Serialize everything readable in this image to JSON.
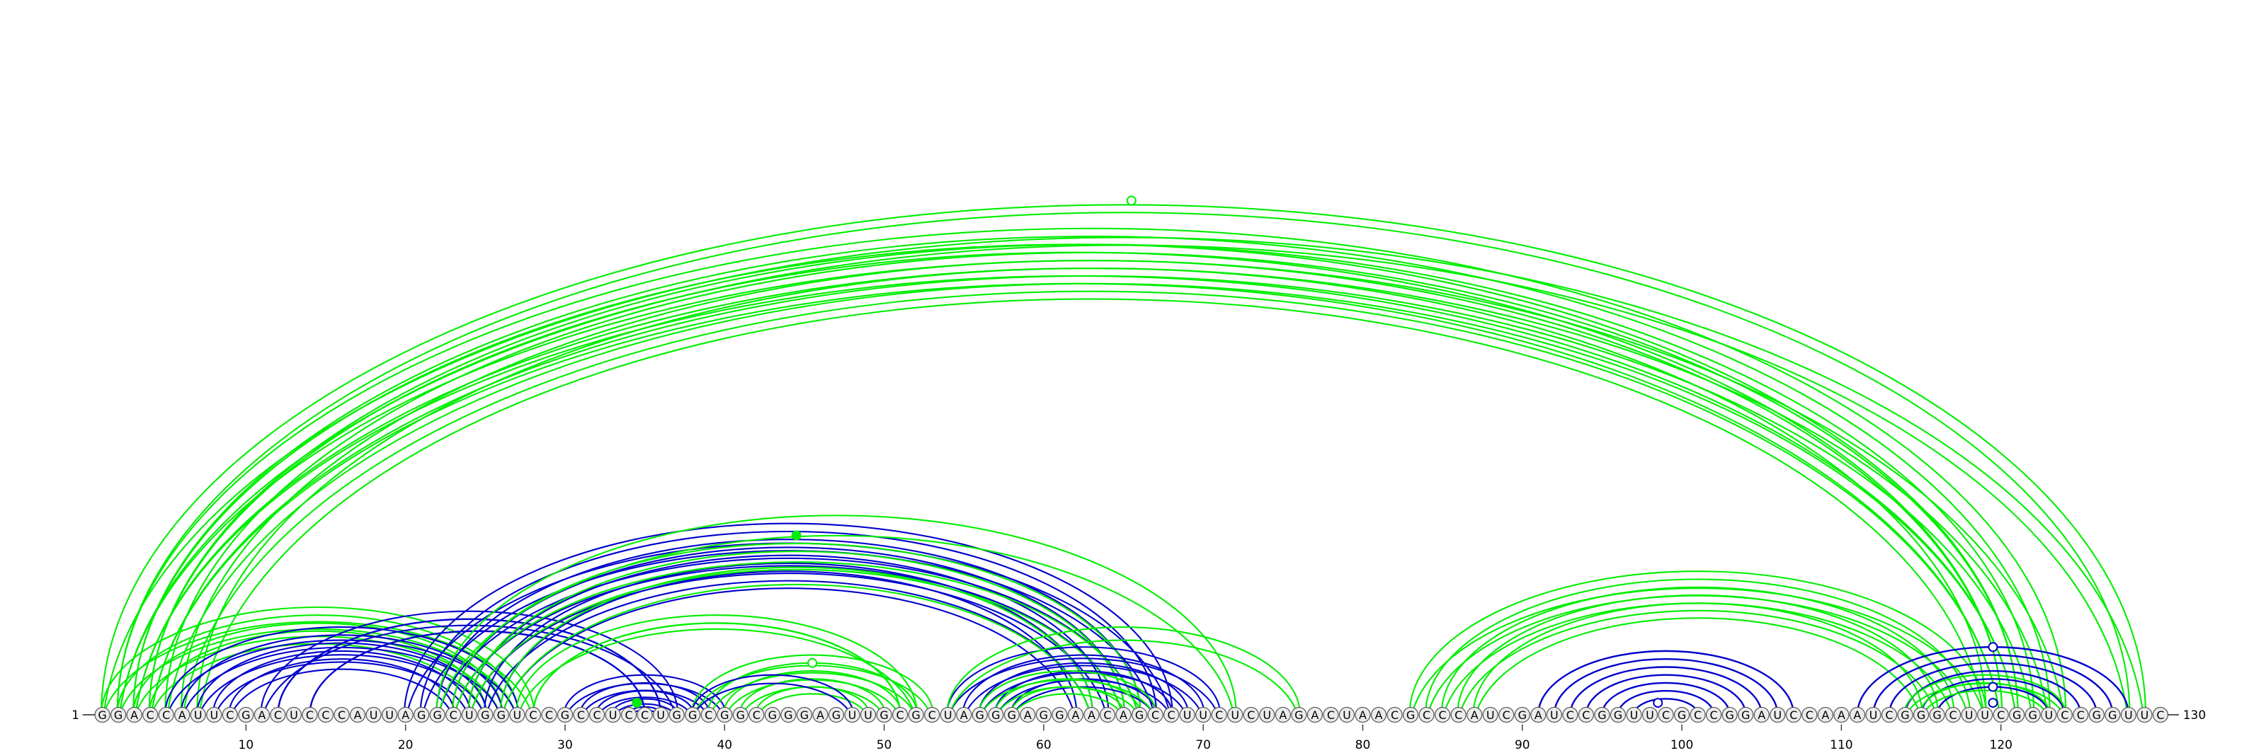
{
  "sequence": "GGACCAUUCGACUCCCAUUAGGCUGGUCCGCCUCCUGGCGGCGGGAGUUGCGCUAGGGAGGAACAGCCUUCUCUAGACUAACGCCCAUCGAUCCGGUUCGCCGGAUCCAAAUCGGGCUUCGGUCCGGUUC",
  "start_label": "1",
  "end_label": "130",
  "ticks": [
    "10",
    "20",
    "30",
    "40",
    "50",
    "60",
    "70",
    "80",
    "90",
    "100",
    "110",
    "120"
  ],
  "colors": {
    "green": "#00ee00",
    "blue": "#0000cc",
    "nucleotide_fill": "#ececec",
    "nucleotide_stroke": "#555555"
  },
  "helices": [
    {
      "color": "green",
      "i": 1,
      "j": 129,
      "count": 2,
      "double": true
    },
    {
      "color": "green",
      "i": 2,
      "j": 124,
      "count": 6,
      "double": true
    },
    {
      "color": "green",
      "i": 3,
      "j": 121,
      "count": 2,
      "double": true
    },
    {
      "color": "green",
      "i": 1,
      "j": 28,
      "count": 4,
      "double": true
    },
    {
      "color": "blue",
      "i": 5,
      "j": 27,
      "count": 5,
      "double": true
    },
    {
      "color": "blue",
      "i": 11,
      "j": 37,
      "count": 1,
      "double": true
    },
    {
      "color": "blue",
      "i": 12,
      "j": 36,
      "count": 1,
      "double": false
    },
    {
      "color": "blue",
      "i": 14,
      "j": 35,
      "count": 1,
      "double": false
    },
    {
      "color": "blue",
      "i": 20,
      "j": 68,
      "count": 7,
      "double": true
    },
    {
      "color": "green",
      "i": 22,
      "j": 72,
      "count": 1,
      "double": true
    },
    {
      "color": "green",
      "i": 23,
      "j": 66,
      "count": 2,
      "double": true
    },
    {
      "color": "green",
      "i": 26,
      "j": 63,
      "count": 1,
      "double": true
    },
    {
      "color": "green",
      "i": 27,
      "j": 52,
      "count": 1,
      "double": true
    },
    {
      "color": "green",
      "i": 28,
      "j": 51,
      "count": 1,
      "double": false
    },
    {
      "color": "blue",
      "i": 30,
      "j": 40,
      "count": 5,
      "double": true
    },
    {
      "color": "green",
      "i": 38,
      "j": 53,
      "count": 5,
      "double": true
    },
    {
      "color": "blue",
      "i": 38,
      "j": 48,
      "count": 1,
      "double": true
    },
    {
      "color": "blue",
      "i": 54,
      "j": 71,
      "count": 5,
      "double": true
    },
    {
      "color": "green",
      "i": 54,
      "j": 76,
      "count": 1,
      "double": true
    },
    {
      "color": "green",
      "i": 56,
      "j": 67,
      "count": 3,
      "double": true
    },
    {
      "color": "green",
      "i": 83,
      "j": 119,
      "count": 5,
      "double": true
    },
    {
      "color": "blue",
      "i": 91,
      "j": 107,
      "count": 7,
      "double": false
    },
    {
      "color": "blue",
      "i": 111,
      "j": 128,
      "count": 6,
      "double": false
    },
    {
      "color": "green",
      "i": 114,
      "j": 124,
      "count": 2,
      "double": true
    }
  ],
  "markers": [
    {
      "pos": 65.5,
      "color": "green",
      "apex_i": 1,
      "apex_j": 130,
      "filled": false
    },
    {
      "pos": 44.5,
      "color": "green",
      "apex_i": 22,
      "apex_j": 67,
      "filled": true
    },
    {
      "pos": 45.5,
      "color": "green",
      "apex_i": 39,
      "apex_j": 52,
      "filled": false
    },
    {
      "pos": 34.5,
      "color": "green",
      "apex_i": 33,
      "apex_j": 36,
      "filled": true
    },
    {
      "pos": 98.5,
      "color": "blue",
      "apex_i": 97,
      "apex_j": 100,
      "filled": false
    },
    {
      "pos": 119.5,
      "color": "blue",
      "apex_i": 111,
      "apex_j": 128,
      "filled": false
    },
    {
      "pos": 119.5,
      "color": "blue",
      "apex_i": 116,
      "apex_j": 123,
      "filled": false
    },
    {
      "pos": 119.5,
      "color": "blue",
      "apex_i": 118,
      "apex_j": 121,
      "filled": false
    }
  ]
}
